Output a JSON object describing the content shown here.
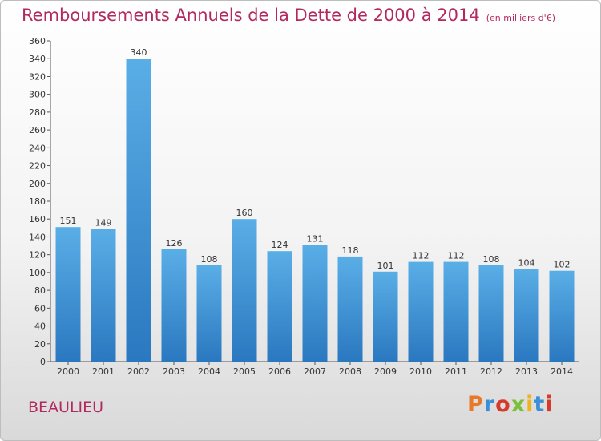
{
  "header": {
    "title": "Remboursements Annuels de la Dette de 2000 à 2014",
    "unit": "(en milliers d'€)"
  },
  "footer": {
    "city": "BEAULIEU",
    "logo": "Proxiti",
    "logo_colors": [
      "#e8792b",
      "#3a8fd6",
      "#d53a2a",
      "#7bbf3a",
      "#f0b21e",
      "#3a8fd6",
      "#d53a2a"
    ]
  },
  "chart_data": {
    "type": "bar",
    "title": "Remboursements Annuels de la Dette de 2000 à 2014",
    "xlabel": "",
    "ylabel": "en milliers d'€",
    "categories": [
      "2000",
      "2001",
      "2002",
      "2003",
      "2004",
      "2005",
      "2006",
      "2007",
      "2008",
      "2009",
      "2010",
      "2011",
      "2012",
      "2013",
      "2014"
    ],
    "values": [
      151,
      149,
      340,
      126,
      108,
      160,
      124,
      131,
      118,
      101,
      112,
      112,
      108,
      104,
      102
    ],
    "ylim": [
      0,
      360
    ],
    "ytick_step": 20,
    "grid": false,
    "bar_color_top": "#5aaee6",
    "bar_color_bottom": "#2a78c0"
  }
}
